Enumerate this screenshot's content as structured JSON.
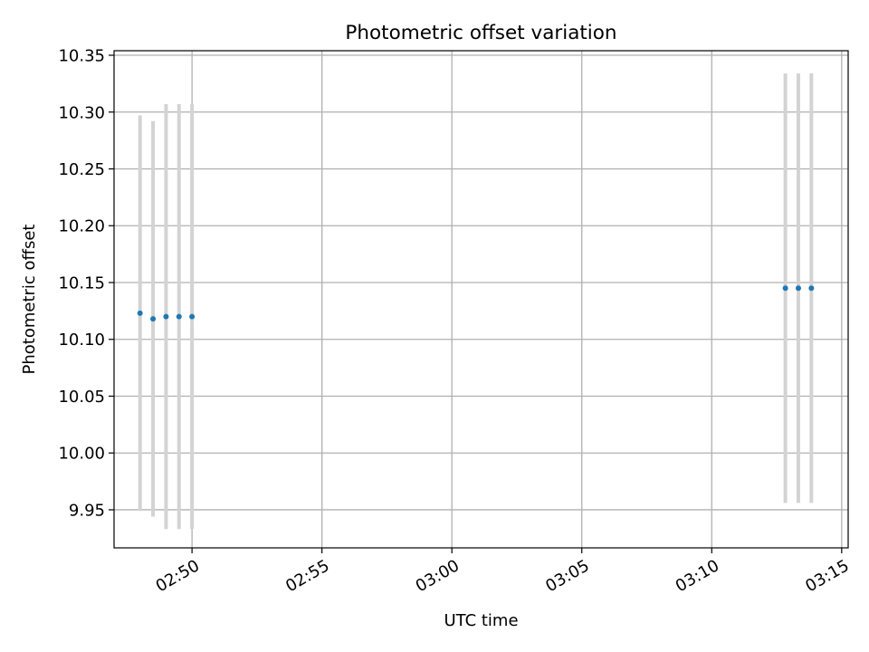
{
  "chart_data": {
    "type": "scatter",
    "title": "Photometric offset variation",
    "xlabel": "UTC time",
    "ylabel": "Photometric offset",
    "x_axis_format": "HH:MM",
    "xlim": [
      "02:47:00",
      "03:15:15"
    ],
    "ylim": [
      9.9165,
      10.354
    ],
    "xticks": [
      "02:50",
      "02:55",
      "03:00",
      "03:05",
      "03:10",
      "03:15"
    ],
    "yticks": [
      "9.95",
      "10.00",
      "10.05",
      "10.10",
      "10.15",
      "10.20",
      "10.25",
      "10.30",
      "10.35"
    ],
    "grid": true,
    "point_color": "#1f77b4",
    "errorbar_color": "#d3d3d3",
    "points": [
      {
        "x": "02:48:00",
        "y": 10.123,
        "y_low": 9.949,
        "y_high": 10.297
      },
      {
        "x": "02:48:30",
        "y": 10.118,
        "y_low": 9.944,
        "y_high": 10.292
      },
      {
        "x": "02:49:00",
        "y": 10.12,
        "y_low": 9.933,
        "y_high": 10.307
      },
      {
        "x": "02:49:30",
        "y": 10.12,
        "y_low": 9.933,
        "y_high": 10.307
      },
      {
        "x": "02:50:00",
        "y": 10.12,
        "y_low": 9.933,
        "y_high": 10.307
      },
      {
        "x": "03:12:50",
        "y": 10.145,
        "y_low": 9.956,
        "y_high": 10.334
      },
      {
        "x": "03:13:20",
        "y": 10.145,
        "y_low": 9.956,
        "y_high": 10.334
      },
      {
        "x": "03:13:50",
        "y": 10.145,
        "y_low": 9.956,
        "y_high": 10.334
      }
    ]
  }
}
